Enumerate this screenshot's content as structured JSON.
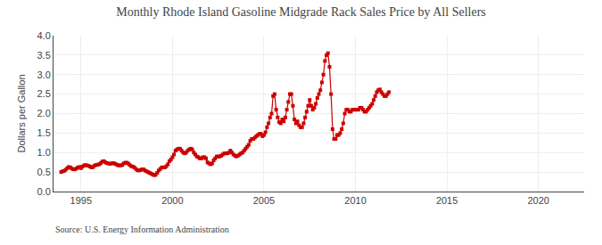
{
  "chart_data": {
    "type": "line",
    "title": "Monthly Rhode Island Gasoline Midgrade Rack Sales Price by All Sellers",
    "ylabel": "Dollars per Gallon",
    "annotations": [
      "Source: U.S. Energy Information Administration"
    ],
    "color": "#cc0000",
    "marker": "square",
    "grid": true,
    "xlim": [
      1993.5,
      2022.5
    ],
    "ylim": [
      0.0,
      4.0
    ],
    "xticks": [
      1995,
      2000,
      2005,
      2010,
      2015,
      2020
    ],
    "yticks": [
      {
        "value": 0.0,
        "label": "0.0"
      },
      0.5,
      {
        "value": 1.0,
        "label": "1.0"
      },
      1.5,
      {
        "value": 2.0,
        "label": "2.0"
      },
      2.5,
      {
        "value": 3.0,
        "label": "3.0"
      },
      3.5,
      {
        "value": 4.0,
        "label": "4.0"
      }
    ],
    "x": [
      1993.917,
      1994.0,
      1994.083,
      1994.167,
      1994.25,
      1994.333,
      1994.417,
      1994.5,
      1994.583,
      1994.667,
      1994.75,
      1994.833,
      1994.917,
      1995.0,
      1995.083,
      1995.167,
      1995.25,
      1995.333,
      1995.417,
      1995.5,
      1995.583,
      1995.667,
      1995.75,
      1995.833,
      1995.917,
      1996.0,
      1996.083,
      1996.167,
      1996.25,
      1996.333,
      1996.417,
      1996.5,
      1996.583,
      1996.667,
      1996.75,
      1996.833,
      1996.917,
      1997.0,
      1997.083,
      1997.167,
      1997.25,
      1997.333,
      1997.417,
      1997.5,
      1997.583,
      1997.667,
      1997.75,
      1997.833,
      1997.917,
      1998.0,
      1998.083,
      1998.167,
      1998.25,
      1998.333,
      1998.417,
      1998.5,
      1998.583,
      1998.667,
      1998.75,
      1998.833,
      1998.917,
      1999.0,
      1999.083,
      1999.167,
      1999.25,
      1999.333,
      1999.417,
      1999.5,
      1999.583,
      1999.667,
      1999.75,
      1999.833,
      1999.917,
      2000.0,
      2000.083,
      2000.167,
      2000.25,
      2000.333,
      2000.417,
      2000.5,
      2000.583,
      2000.667,
      2000.75,
      2000.833,
      2000.917,
      2001.0,
      2001.083,
      2001.167,
      2001.25,
      2001.333,
      2001.417,
      2001.5,
      2001.583,
      2001.667,
      2001.75,
      2001.833,
      2001.917,
      2002.0,
      2002.083,
      2002.167,
      2002.25,
      2002.333,
      2002.417,
      2002.5,
      2002.583,
      2002.667,
      2002.75,
      2002.833,
      2002.917,
      2003.0,
      2003.083,
      2003.167,
      2003.25,
      2003.333,
      2003.417,
      2003.5,
      2003.583,
      2003.667,
      2003.75,
      2003.833,
      2003.917,
      2004.0,
      2004.083,
      2004.167,
      2004.25,
      2004.333,
      2004.417,
      2004.5,
      2004.583,
      2004.667,
      2004.75,
      2004.833,
      2004.917,
      2005.0,
      2005.083,
      2005.167,
      2005.25,
      2005.333,
      2005.417,
      2005.5,
      2005.583,
      2005.667,
      2005.75,
      2005.833,
      2005.917,
      2006.0,
      2006.083,
      2006.167,
      2006.25,
      2006.333,
      2006.417,
      2006.5,
      2006.583,
      2006.667,
      2006.75,
      2006.833,
      2006.917,
      2007.0,
      2007.083,
      2007.167,
      2007.25,
      2007.333,
      2007.417,
      2007.5,
      2007.583,
      2007.667,
      2007.75,
      2007.833,
      2007.917,
      2008.0,
      2008.083,
      2008.167,
      2008.25,
      2008.333,
      2008.417,
      2008.5,
      2008.583,
      2008.667,
      2008.75,
      2008.833,
      2008.917,
      2009.0,
      2009.083,
      2009.167,
      2009.25,
      2009.333,
      2009.417,
      2009.5,
      2009.583,
      2009.667,
      2009.75,
      2009.833,
      2009.917,
      2010.0,
      2010.083,
      2010.167,
      2010.25,
      2010.333,
      2010.417,
      2010.5,
      2010.583,
      2010.667,
      2010.75,
      2010.833,
      2010.917,
      2011.0,
      2011.083,
      2011.167,
      2011.25,
      2011.333,
      2011.417,
      2011.5,
      2011.583,
      2011.667,
      2011.75,
      2011.833
    ],
    "values": [
      0.5,
      0.52,
      0.53,
      0.56,
      0.6,
      0.63,
      0.62,
      0.59,
      0.57,
      0.57,
      0.59,
      0.62,
      0.63,
      0.6,
      0.64,
      0.67,
      0.68,
      0.67,
      0.66,
      0.64,
      0.62,
      0.63,
      0.67,
      0.68,
      0.69,
      0.7,
      0.73,
      0.77,
      0.78,
      0.75,
      0.73,
      0.72,
      0.71,
      0.72,
      0.73,
      0.72,
      0.7,
      0.68,
      0.67,
      0.67,
      0.68,
      0.72,
      0.74,
      0.74,
      0.72,
      0.68,
      0.65,
      0.64,
      0.62,
      0.58,
      0.55,
      0.54,
      0.55,
      0.57,
      0.57,
      0.54,
      0.52,
      0.5,
      0.48,
      0.46,
      0.44,
      0.42,
      0.43,
      0.48,
      0.54,
      0.58,
      0.62,
      0.62,
      0.62,
      0.65,
      0.7,
      0.78,
      0.82,
      0.88,
      0.95,
      1.05,
      1.08,
      1.1,
      1.1,
      1.05,
      1.0,
      0.98,
      1.0,
      1.05,
      1.08,
      1.1,
      1.08,
      1.0,
      0.95,
      0.9,
      0.88,
      0.85,
      0.85,
      0.88,
      0.88,
      0.85,
      0.75,
      0.72,
      0.7,
      0.72,
      0.8,
      0.85,
      0.9,
      0.9,
      0.9,
      0.92,
      0.95,
      0.98,
      0.98,
      0.98,
      1.0,
      1.05,
      1.0,
      0.95,
      0.92,
      0.9,
      0.92,
      0.95,
      0.98,
      1.0,
      1.05,
      1.1,
      1.15,
      1.2,
      1.3,
      1.35,
      1.35,
      1.38,
      1.42,
      1.45,
      1.48,
      1.48,
      1.42,
      1.45,
      1.52,
      1.65,
      1.75,
      1.9,
      2.0,
      2.45,
      2.5,
      2.1,
      1.9,
      1.78,
      1.75,
      1.85,
      1.8,
      1.9,
      2.1,
      2.3,
      2.5,
      2.5,
      2.2,
      1.85,
      1.75,
      1.8,
      1.7,
      1.65,
      1.65,
      1.75,
      1.9,
      2.05,
      2.2,
      2.35,
      2.2,
      2.1,
      2.15,
      2.25,
      2.4,
      2.5,
      2.6,
      2.8,
      3.0,
      3.35,
      3.5,
      3.55,
      3.2,
      2.5,
      1.6,
      1.35,
      1.35,
      1.45,
      1.45,
      1.5,
      1.6,
      1.75,
      2.0,
      2.1,
      2.1,
      2.05,
      2.05,
      2.1,
      2.1,
      2.1,
      2.1,
      2.1,
      2.15,
      2.15,
      2.1,
      2.05,
      2.05,
      2.1,
      2.15,
      2.2,
      2.25,
      2.35,
      2.45,
      2.55,
      2.6,
      2.62,
      2.55,
      2.5,
      2.45,
      2.45,
      2.5,
      2.55
    ]
  }
}
